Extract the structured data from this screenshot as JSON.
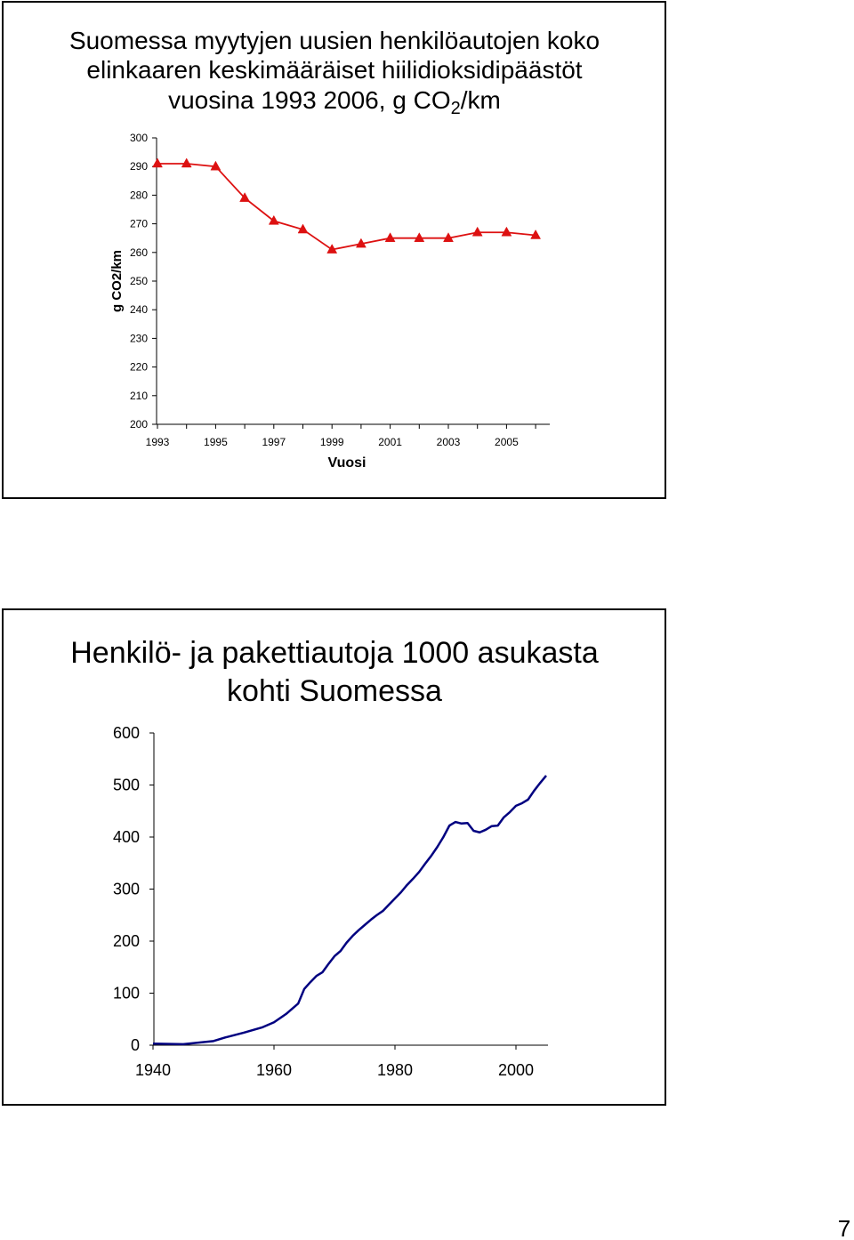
{
  "chart_data": [
    {
      "type": "line",
      "title_lines": [
        "Suomessa myytyjen uusien henkilöautojen koko",
        "elinkaaren keskimääräiset hiilidioksidipäästöt"
      ],
      "title_last_line": {
        "text": "vuosina 1993 2006, g CO",
        "subscript": "2",
        "suffix": "/km"
      },
      "xlabel": "Vuosi",
      "ylabel": "g CO2/km",
      "ylim": [
        200,
        300
      ],
      "yticks": [
        300,
        290,
        280,
        270,
        260,
        250,
        240,
        230,
        220,
        210,
        200
      ],
      "xlim": [
        1993,
        2006
      ],
      "xtick_labels": [
        "1993",
        "1995",
        "1997",
        "1999",
        "2001",
        "2003",
        "2005"
      ],
      "x": [
        1993,
        1994,
        1995,
        1996,
        1997,
        1998,
        1999,
        2000,
        2001,
        2002,
        2003,
        2004,
        2005,
        2006
      ],
      "series": [
        {
          "values": [
            291,
            291,
            290,
            279,
            271,
            268,
            261,
            263,
            265,
            265,
            265,
            267,
            267,
            266
          ],
          "color": "#dd1111",
          "marker": "triangle"
        }
      ],
      "grid": false,
      "legend": "none"
    },
    {
      "type": "line",
      "title_lines": [
        "Henkilö- ja pakettiautoja 1000 asukasta",
        "kohti Suomessa"
      ],
      "ylim": [
        0,
        600
      ],
      "yticks": [
        600,
        500,
        400,
        300,
        200,
        100,
        0
      ],
      "xlim": [
        1940,
        2005
      ],
      "xticks": [
        1940,
        1960,
        1980,
        2000
      ],
      "series": [
        {
          "x": [
            1940,
            1945,
            1950,
            1952,
            1955,
            1958,
            1960,
            1962,
            1964,
            1965,
            1966,
            1967,
            1968,
            1969,
            1970,
            1971,
            1972,
            1973,
            1974,
            1975,
            1976,
            1977,
            1978,
            1979,
            1980,
            1981,
            1982,
            1983,
            1984,
            1985,
            1986,
            1987,
            1988,
            1989,
            1990,
            1991,
            1992,
            1993,
            1994,
            1995,
            1996,
            1997,
            1998,
            1999,
            2000,
            2001,
            2002,
            2003,
            2004,
            2005
          ],
          "values": [
            3,
            2,
            8,
            15,
            24,
            34,
            44,
            60,
            80,
            108,
            121,
            133,
            140,
            156,
            171,
            181,
            197,
            210,
            221,
            231,
            241,
            250,
            258,
            270,
            282,
            294,
            308,
            320,
            333,
            349,
            364,
            381,
            400,
            422,
            429,
            426,
            427,
            412,
            409,
            414,
            421,
            422,
            438,
            448,
            460,
            465,
            472,
            489,
            504,
            518
          ],
          "color": "#000080",
          "marker": "none"
        }
      ],
      "grid": false,
      "legend": "none"
    }
  ],
  "page": {
    "number": "7"
  }
}
